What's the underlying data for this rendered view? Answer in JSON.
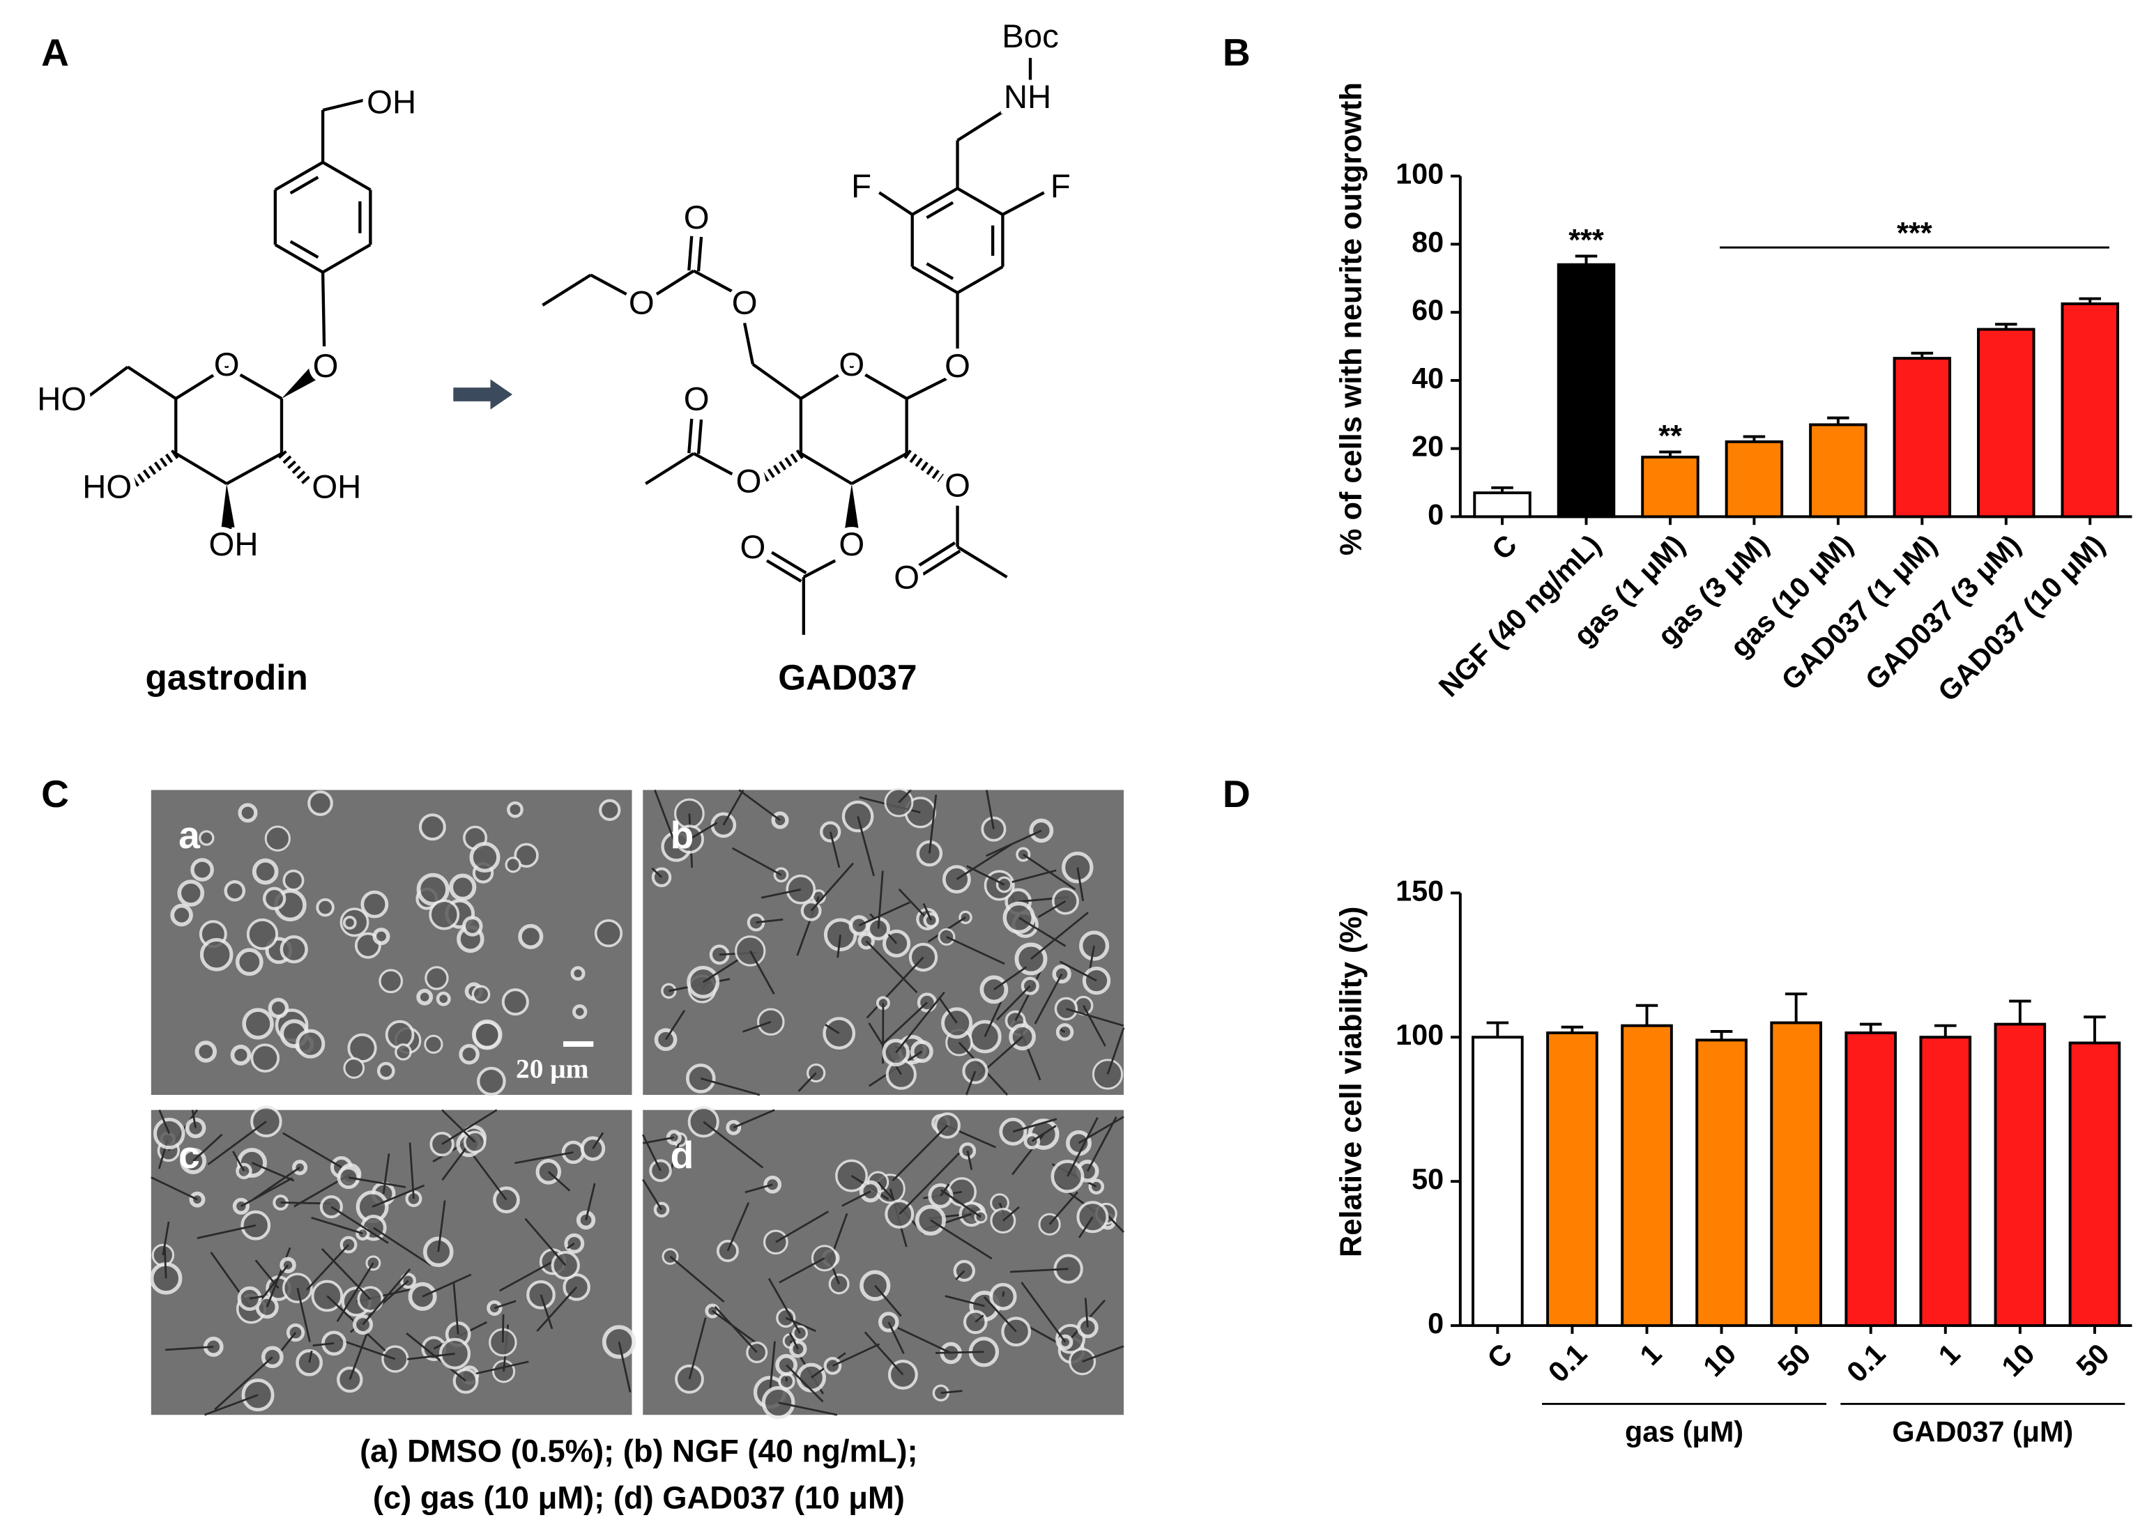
{
  "panels": [
    "A",
    "B",
    "C",
    "D"
  ],
  "structures": [
    {
      "name": "gastrodin",
      "atoms": [
        "OH",
        "O",
        "O",
        "HO",
        "HO",
        "OH",
        "OH"
      ]
    },
    {
      "name": "GAD037",
      "atoms": [
        "Boc",
        "NH",
        "F",
        "F",
        "O",
        "O",
        "O",
        "O",
        "O",
        "O",
        "O",
        "O",
        "O",
        "O",
        "O"
      ]
    }
  ],
  "micrographs": {
    "labels": [
      "a",
      "b",
      "c",
      "d"
    ],
    "scale_bar": "20 μm",
    "caption": [
      "(a) DMSO (0.5%); (b) NGF (40 ng/mL);",
      "(c) gas (10 μM); (d) GAD037 (10 μM)"
    ]
  },
  "chart_data": [
    {
      "type": "bar",
      "ylabel": "% of cells with neurite outgrowth",
      "categories": [
        "C",
        "NGF (40 ng/mL)",
        "gas (1 μM)",
        "gas (3 μM)",
        "gas (10 μM)",
        "GAD037 (1 μM)",
        "GAD037 (3 μM)",
        "GAD037 (10 μM)"
      ],
      "values": [
        7,
        74,
        17.5,
        22,
        27,
        46.5,
        55,
        62.5
      ],
      "errors": [
        1.5,
        2.5,
        1.5,
        1.5,
        2,
        1.5,
        1.5,
        1.5
      ],
      "colors": [
        "#ffffff",
        "#000000",
        "#ff8000",
        "#ff8000",
        "#ff8000",
        "#ff1a1a",
        "#ff1a1a",
        "#ff1a1a"
      ],
      "annotations": [
        "***",
        "**",
        "***"
      ],
      "ylim": [
        0,
        100
      ],
      "yticks": [
        0,
        20,
        40,
        60,
        80,
        100
      ]
    },
    {
      "type": "bar",
      "ylabel": "Relative cell viability (%)",
      "categories": [
        "C",
        "0.1",
        "1",
        "10",
        "50",
        "0.1",
        "1",
        "10",
        "50"
      ],
      "values": [
        100,
        101.5,
        104,
        99,
        105,
        101.5,
        100,
        104.5,
        98
      ],
      "errors": [
        5,
        2,
        7,
        3,
        10,
        3,
        4,
        8,
        9
      ],
      "colors": [
        "#ffffff",
        "#ff8000",
        "#ff8000",
        "#ff8000",
        "#ff8000",
        "#ff1a1a",
        "#ff1a1a",
        "#ff1a1a",
        "#ff1a1a"
      ],
      "groups": [
        "gas (μM)",
        "GAD037 (μM)"
      ],
      "ylim": [
        0,
        150
      ],
      "yticks": [
        0,
        50,
        100,
        150
      ]
    }
  ]
}
